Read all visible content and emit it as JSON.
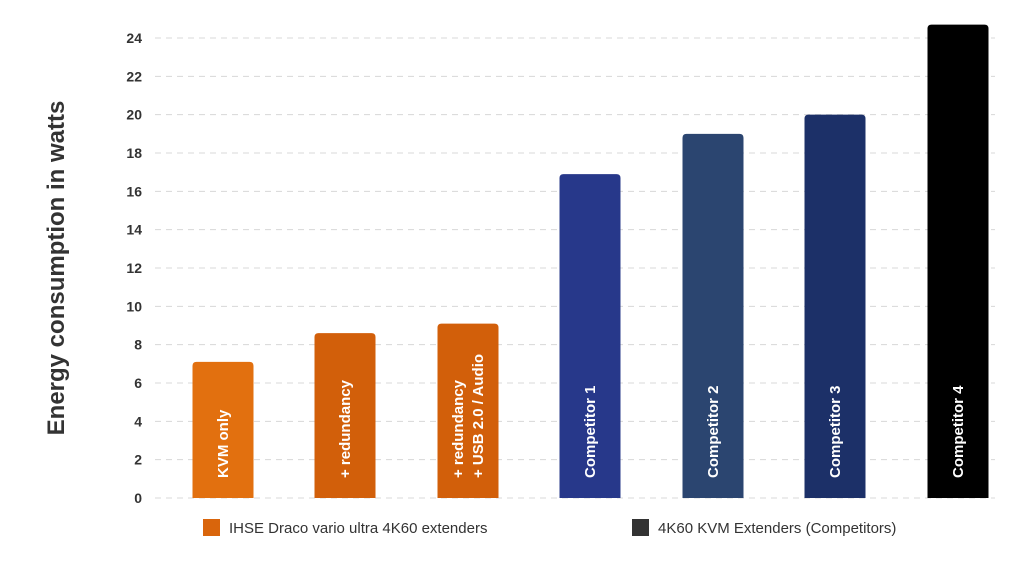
{
  "chart_data": {
    "type": "bar",
    "title": "",
    "xlabel": "",
    "ylabel": "Energy consumption in watts",
    "ylim": [
      0,
      24
    ],
    "yticks": [
      0,
      2,
      4,
      6,
      8,
      10,
      12,
      14,
      16,
      18,
      20,
      22,
      24
    ],
    "grid": true,
    "legend_placement": "bottom",
    "categories": [
      [
        "KVM only"
      ],
      [
        "+ redundancy"
      ],
      [
        "+ redundancy",
        "+ USB 2.0 / Audio"
      ],
      [
        "Competitor 1"
      ],
      [
        "Competitor 2"
      ],
      [
        "Competitor 3"
      ],
      [
        "Competitor 4"
      ]
    ],
    "values": [
      7.1,
      8.6,
      9.1,
      16.9,
      19.0,
      20.0,
      24.7
    ],
    "bar_colors": [
      "#e2700f",
      "#d25f0a",
      "#d25f0a",
      "#27388a",
      "#2b4570",
      "#1c3068",
      "#000000"
    ],
    "legend": [
      {
        "name": "IHSE Draco vario ultra 4K60 extenders",
        "color": "#d9650c"
      },
      {
        "name": "4K60 KVM Extenders (Competitors)",
        "color": "#333333"
      }
    ]
  }
}
